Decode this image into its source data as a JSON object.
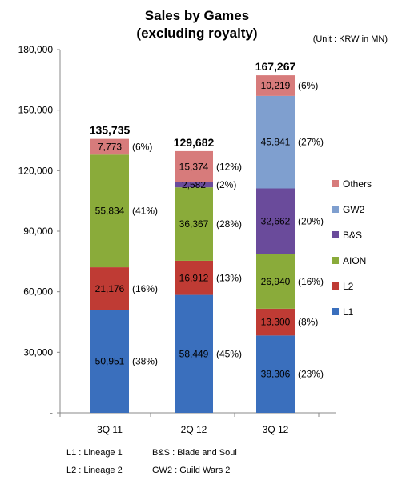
{
  "chart_data": {
    "type": "bar",
    "stacked": true,
    "title": "Sales by Games",
    "subtitle": "(excluding royalty)",
    "unit_note": "(Unit : KRW in MN)",
    "categories": [
      "3Q 11",
      "2Q 12",
      "3Q 12"
    ],
    "totals": [
      "135,735",
      "129,682",
      "167,267"
    ],
    "ylim": [
      0,
      180000
    ],
    "yticks": [
      0,
      30000,
      60000,
      90000,
      120000,
      150000,
      180000
    ],
    "ytick_labels": [
      "-",
      "30,000",
      "60,000",
      "90,000",
      "120,000",
      "150,000",
      "180,000"
    ],
    "legend_position": "right",
    "series": [
      {
        "name": "L1",
        "color": "#3a6fbd",
        "values": [
          50951,
          58449,
          38306
        ],
        "value_labels": [
          "50,951",
          "58,449",
          "38,306"
        ],
        "pct_labels": [
          "(38%)",
          "(45%)",
          "(23%)"
        ]
      },
      {
        "name": "L2",
        "color": "#bf3b34",
        "values": [
          21176,
          16912,
          13300
        ],
        "value_labels": [
          "21,176",
          "16,912",
          "13,300"
        ],
        "pct_labels": [
          "(16%)",
          "(13%)",
          "(8%)"
        ]
      },
      {
        "name": "AION",
        "color": "#8aab3a",
        "values": [
          55834,
          36367,
          26940
        ],
        "value_labels": [
          "55,834",
          "36,367",
          "26,940"
        ],
        "pct_labels": [
          "(41%)",
          "(28%)",
          "(16%)"
        ]
      },
      {
        "name": "B&S",
        "color": "#6a4b9b",
        "values": [
          0,
          2582,
          32662
        ],
        "value_labels": [
          "",
          "2,582",
          "32,662"
        ],
        "pct_labels": [
          "",
          "(2%)",
          "(20%)"
        ]
      },
      {
        "name": "GW2",
        "color": "#7f9fcf",
        "values": [
          0,
          0,
          45841
        ],
        "value_labels": [
          "",
          "",
          "45,841"
        ],
        "pct_labels": [
          "",
          "",
          "(27%)"
        ]
      },
      {
        "name": "Others",
        "color": "#d77b7b",
        "values": [
          7773,
          15374,
          10219
        ],
        "value_labels": [
          "7,773",
          "15,374",
          "10,219"
        ],
        "pct_labels": [
          "(6%)",
          "(12%)",
          "(6%)"
        ]
      }
    ],
    "legend_order": [
      "Others",
      "GW2",
      "B&S",
      "AION",
      "L2",
      "L1"
    ],
    "footnotes": [
      [
        "L1 : Lineage 1",
        "B&S : Blade and Soul"
      ],
      [
        "L2 : Lineage 2",
        "GW2 : Guild Wars 2"
      ]
    ]
  }
}
